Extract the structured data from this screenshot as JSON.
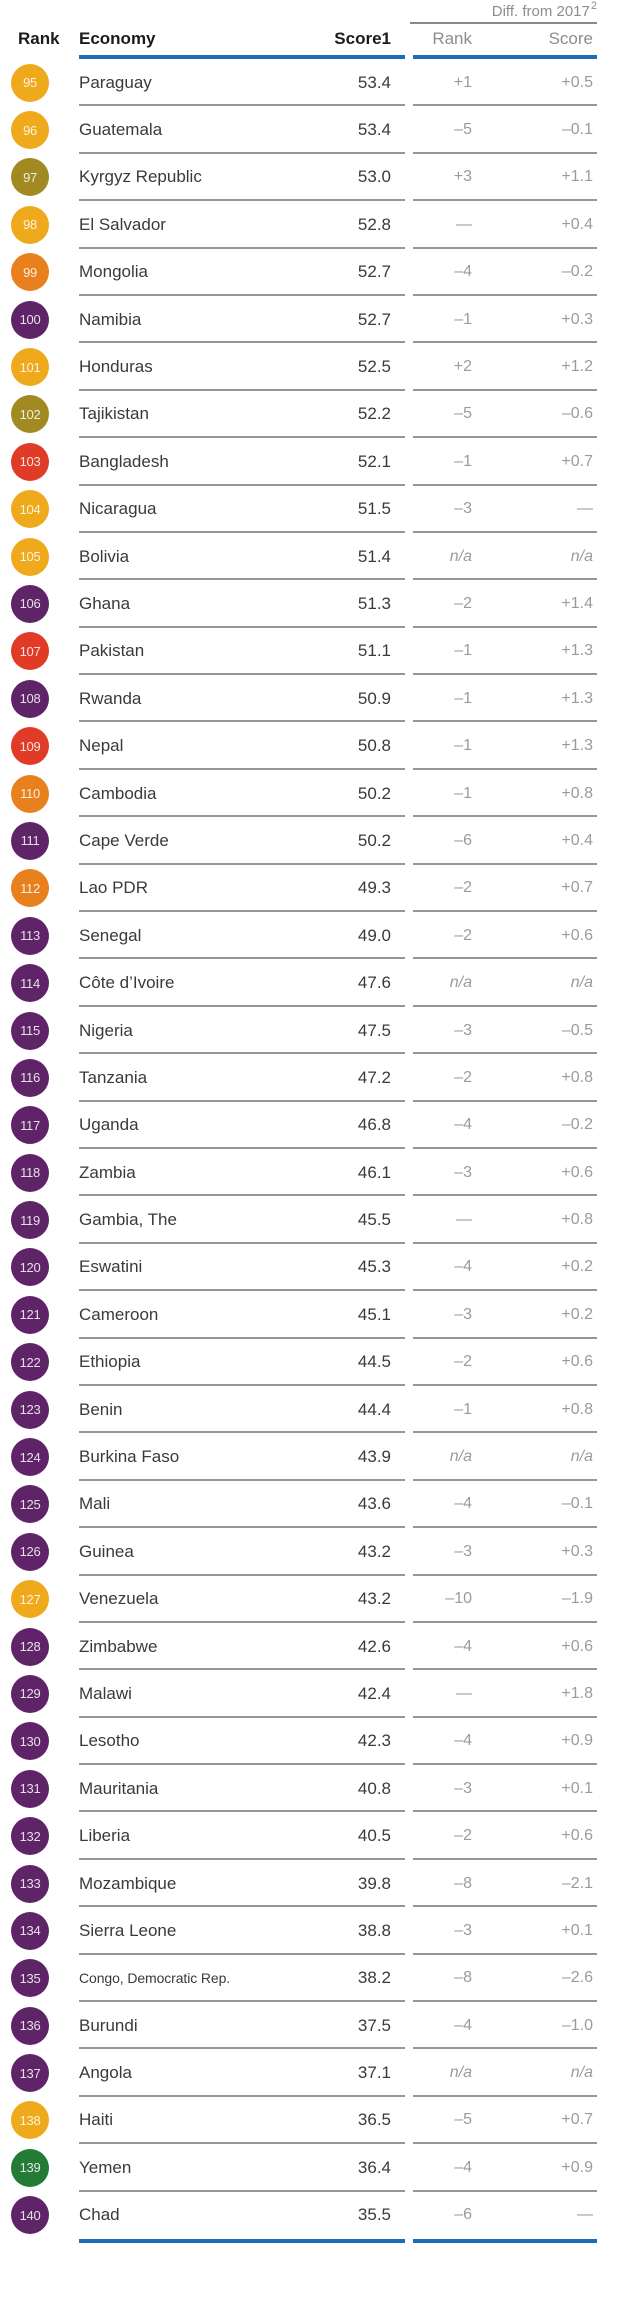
{
  "header": {
    "diff_group_label": "Diff. from 2017",
    "diff_group_sup": "2",
    "col_rank": "Rank",
    "col_economy": "Economy",
    "col_score": "Score1",
    "col_diff_rank": "Rank",
    "col_diff_score": "Score"
  },
  "colors": {
    "latam": "#EFA91C",
    "east_asia": "#E9801E",
    "eurasia": "#A18A22",
    "south_asia": "#E03B27",
    "africa": "#5F2468",
    "mena": "#237B35",
    "rule_blue": "#1F6DB6",
    "rule_gray": "#969696"
  },
  "rows": [
    {
      "rank": "95",
      "economy": "Paraguay",
      "score": "53.4",
      "diff_rank": "+1",
      "diff_score": "+0.5",
      "region": "latam"
    },
    {
      "rank": "96",
      "economy": "Guatemala",
      "score": "53.4",
      "diff_rank": "–5",
      "diff_score": "–0.1",
      "region": "latam"
    },
    {
      "rank": "97",
      "economy": "Kyrgyz Republic",
      "score": "53.0",
      "diff_rank": "+3",
      "diff_score": "+1.1",
      "region": "eurasia"
    },
    {
      "rank": "98",
      "economy": "El Salvador",
      "score": "52.8",
      "diff_rank": "—",
      "diff_score": "+0.4",
      "region": "latam"
    },
    {
      "rank": "99",
      "economy": "Mongolia",
      "score": "52.7",
      "diff_rank": "–4",
      "diff_score": "–0.2",
      "region": "east_asia"
    },
    {
      "rank": "100",
      "economy": "Namibia",
      "score": "52.7",
      "diff_rank": "–1",
      "diff_score": "+0.3",
      "region": "africa"
    },
    {
      "rank": "101",
      "economy": "Honduras",
      "score": "52.5",
      "diff_rank": "+2",
      "diff_score": "+1.2",
      "region": "latam"
    },
    {
      "rank": "102",
      "economy": "Tajikistan",
      "score": "52.2",
      "diff_rank": "–5",
      "diff_score": "–0.6",
      "region": "eurasia"
    },
    {
      "rank": "103",
      "economy": "Bangladesh",
      "score": "52.1",
      "diff_rank": "–1",
      "diff_score": "+0.7",
      "region": "south_asia"
    },
    {
      "rank": "104",
      "economy": "Nicaragua",
      "score": "51.5",
      "diff_rank": "–3",
      "diff_score": "—",
      "region": "latam"
    },
    {
      "rank": "105",
      "economy": "Bolivia",
      "score": "51.4",
      "diff_rank": "n/a",
      "diff_score": "n/a",
      "region": "latam"
    },
    {
      "rank": "106",
      "economy": "Ghana",
      "score": "51.3",
      "diff_rank": "–2",
      "diff_score": "+1.4",
      "region": "africa"
    },
    {
      "rank": "107",
      "economy": "Pakistan",
      "score": "51.1",
      "diff_rank": "–1",
      "diff_score": "+1.3",
      "region": "south_asia"
    },
    {
      "rank": "108",
      "economy": "Rwanda",
      "score": "50.9",
      "diff_rank": "–1",
      "diff_score": "+1.3",
      "region": "africa"
    },
    {
      "rank": "109",
      "economy": "Nepal",
      "score": "50.8",
      "diff_rank": "–1",
      "diff_score": "+1.3",
      "region": "south_asia"
    },
    {
      "rank": "110",
      "economy": "Cambodia",
      "score": "50.2",
      "diff_rank": "–1",
      "diff_score": "+0.8",
      "region": "east_asia"
    },
    {
      "rank": "111",
      "economy": "Cape Verde",
      "score": "50.2",
      "diff_rank": "–6",
      "diff_score": "+0.4",
      "region": "africa"
    },
    {
      "rank": "112",
      "economy": "Lao PDR",
      "score": "49.3",
      "diff_rank": "–2",
      "diff_score": "+0.7",
      "region": "east_asia"
    },
    {
      "rank": "113",
      "economy": "Senegal",
      "score": "49.0",
      "diff_rank": "–2",
      "diff_score": "+0.6",
      "region": "africa"
    },
    {
      "rank": "114",
      "economy": "Côte d’Ivoire",
      "score": "47.6",
      "diff_rank": "n/a",
      "diff_score": "n/a",
      "region": "africa"
    },
    {
      "rank": "115",
      "economy": "Nigeria",
      "score": "47.5",
      "diff_rank": "–3",
      "diff_score": "–0.5",
      "region": "africa"
    },
    {
      "rank": "116",
      "economy": "Tanzania",
      "score": "47.2",
      "diff_rank": "–2",
      "diff_score": "+0.8",
      "region": "africa"
    },
    {
      "rank": "117",
      "economy": "Uganda",
      "score": "46.8",
      "diff_rank": "–4",
      "diff_score": "–0.2",
      "region": "africa"
    },
    {
      "rank": "118",
      "economy": "Zambia",
      "score": "46.1",
      "diff_rank": "–3",
      "diff_score": "+0.6",
      "region": "africa"
    },
    {
      "rank": "119",
      "economy": "Gambia, The",
      "score": "45.5",
      "diff_rank": "—",
      "diff_score": "+0.8",
      "region": "africa"
    },
    {
      "rank": "120",
      "economy": "Eswatini",
      "score": "45.3",
      "diff_rank": "–4",
      "diff_score": "+0.2",
      "region": "africa"
    },
    {
      "rank": "121",
      "economy": "Cameroon",
      "score": "45.1",
      "diff_rank": "–3",
      "diff_score": "+0.2",
      "region": "africa"
    },
    {
      "rank": "122",
      "economy": "Ethiopia",
      "score": "44.5",
      "diff_rank": "–2",
      "diff_score": "+0.6",
      "region": "africa"
    },
    {
      "rank": "123",
      "economy": "Benin",
      "score": "44.4",
      "diff_rank": "–1",
      "diff_score": "+0.8",
      "region": "africa"
    },
    {
      "rank": "124",
      "economy": "Burkina Faso",
      "score": "43.9",
      "diff_rank": "n/a",
      "diff_score": "n/a",
      "region": "africa"
    },
    {
      "rank": "125",
      "economy": "Mali",
      "score": "43.6",
      "diff_rank": "–4",
      "diff_score": "–0.1",
      "region": "africa"
    },
    {
      "rank": "126",
      "economy": "Guinea",
      "score": "43.2",
      "diff_rank": "–3",
      "diff_score": "+0.3",
      "region": "africa"
    },
    {
      "rank": "127",
      "economy": "Venezuela",
      "score": "43.2",
      "diff_rank": "–10",
      "diff_score": "–1.9",
      "region": "latam"
    },
    {
      "rank": "128",
      "economy": "Zimbabwe",
      "score": "42.6",
      "diff_rank": "–4",
      "diff_score": "+0.6",
      "region": "africa"
    },
    {
      "rank": "129",
      "economy": "Malawi",
      "score": "42.4",
      "diff_rank": "—",
      "diff_score": "+1.8",
      "region": "africa"
    },
    {
      "rank": "130",
      "economy": "Lesotho",
      "score": "42.3",
      "diff_rank": "–4",
      "diff_score": "+0.9",
      "region": "africa"
    },
    {
      "rank": "131",
      "economy": "Mauritania",
      "score": "40.8",
      "diff_rank": "–3",
      "diff_score": "+0.1",
      "region": "africa"
    },
    {
      "rank": "132",
      "economy": "Liberia",
      "score": "40.5",
      "diff_rank": "–2",
      "diff_score": "+0.6",
      "region": "africa"
    },
    {
      "rank": "133",
      "economy": "Mozambique",
      "score": "39.8",
      "diff_rank": "–8",
      "diff_score": "–2.1",
      "region": "africa"
    },
    {
      "rank": "134",
      "economy": "Sierra Leone",
      "score": "38.8",
      "diff_rank": "–3",
      "diff_score": "+0.1",
      "region": "africa"
    },
    {
      "rank": "135",
      "economy": "Congo, Democratic Rep.",
      "score": "38.2",
      "diff_rank": "–8",
      "diff_score": "–2.6",
      "region": "africa"
    },
    {
      "rank": "136",
      "economy": "Burundi",
      "score": "37.5",
      "diff_rank": "–4",
      "diff_score": "–1.0",
      "region": "africa"
    },
    {
      "rank": "137",
      "economy": "Angola",
      "score": "37.1",
      "diff_rank": "n/a",
      "diff_score": "n/a",
      "region": "africa"
    },
    {
      "rank": "138",
      "economy": "Haiti",
      "score": "36.5",
      "diff_rank": "–5",
      "diff_score": "+0.7",
      "region": "latam"
    },
    {
      "rank": "139",
      "economy": "Yemen",
      "score": "36.4",
      "diff_rank": "–4",
      "diff_score": "+0.9",
      "region": "mena"
    },
    {
      "rank": "140",
      "economy": "Chad",
      "score": "35.5",
      "diff_rank": "–6",
      "diff_score": "—",
      "region": "africa"
    }
  ]
}
